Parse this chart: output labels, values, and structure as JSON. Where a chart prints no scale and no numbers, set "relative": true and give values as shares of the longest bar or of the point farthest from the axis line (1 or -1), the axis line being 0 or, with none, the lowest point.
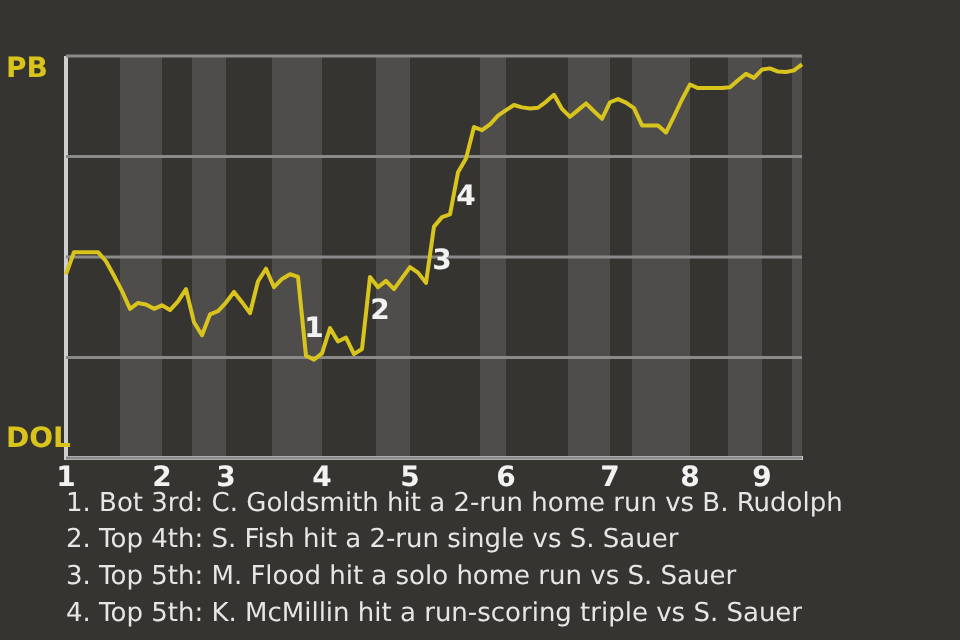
{
  "chart_data": {
    "type": "line",
    "relative": true,
    "categories": [
      "1",
      null,
      null,
      null,
      null,
      null,
      null,
      null,
      null,
      null,
      null,
      null,
      "2",
      null,
      null,
      null,
      null,
      null,
      null,
      null,
      "3",
      null,
      null,
      null,
      null,
      null,
      null,
      null,
      null,
      null,
      null,
      null,
      "4",
      null,
      null,
      null,
      null,
      null,
      null,
      null,
      null,
      null,
      null,
      "5",
      null,
      null,
      null,
      null,
      null,
      null,
      null,
      null,
      null,
      null,
      null,
      "6",
      null,
      null,
      null,
      null,
      null,
      null,
      null,
      null,
      null,
      null,
      null,
      null,
      "7",
      null,
      null,
      null,
      null,
      null,
      null,
      null,
      null,
      null,
      "8",
      null,
      null,
      null,
      null,
      null,
      null,
      null,
      null,
      "9",
      null,
      null,
      null,
      null,
      null
    ],
    "grid": "y",
    "marker": "none",
    "line_style": "solid",
    "series": [
      {
        "color": "#d8c41c",
        "values": [
          0.467,
          0.523,
          0.523,
          0.523,
          0.523,
          0.5,
          0.463,
          0.424,
          0.379,
          0.394,
          0.39,
          0.379,
          0.388,
          0.376,
          0.398,
          0.429,
          0.345,
          0.312,
          0.365,
          0.373,
          0.395,
          0.422,
          0.396,
          0.368,
          0.449,
          0.481,
          0.434,
          0.455,
          0.467,
          0.46,
          0.26,
          0.25,
          0.266,
          0.33,
          0.296,
          0.306,
          0.264,
          0.277,
          0.46,
          0.434,
          0.45,
          0.429,
          0.457,
          0.485,
          0.471,
          0.445,
          0.588,
          0.612,
          0.619,
          0.726,
          0.761,
          0.841,
          0.833,
          0.848,
          0.87,
          0.884,
          0.897,
          0.891,
          0.888,
          0.89,
          0.905,
          0.923,
          0.887,
          0.867,
          0.884,
          0.901,
          0.881,
          0.862,
          0.904,
          0.912,
          0.903,
          0.889,
          0.845,
          0.845,
          0.845,
          0.827,
          0.868,
          0.911,
          0.949,
          0.94,
          0.94,
          0.94,
          0.94,
          0.942,
          0.96,
          0.976,
          0.966,
          0.987,
          0.99,
          0.982,
          0.981,
          0.985,
          1
        ]
      }
    ],
    "annotations": [
      "PB",
      "DOL",
      "1",
      "2",
      "3",
      "4",
      "1. Bot 3rd: C. Goldsmith hit a 2-run home run vs B. Rudolph",
      "2. Top 4th: S. Fish hit a 2-run single vs S. Sauer",
      "3. Top 5th: M. Flood hit a solo home run vs S. Sauer",
      "4. Top 5th: K. McMillin hit a run-scoring triple vs S. Sauer"
    ]
  }
}
